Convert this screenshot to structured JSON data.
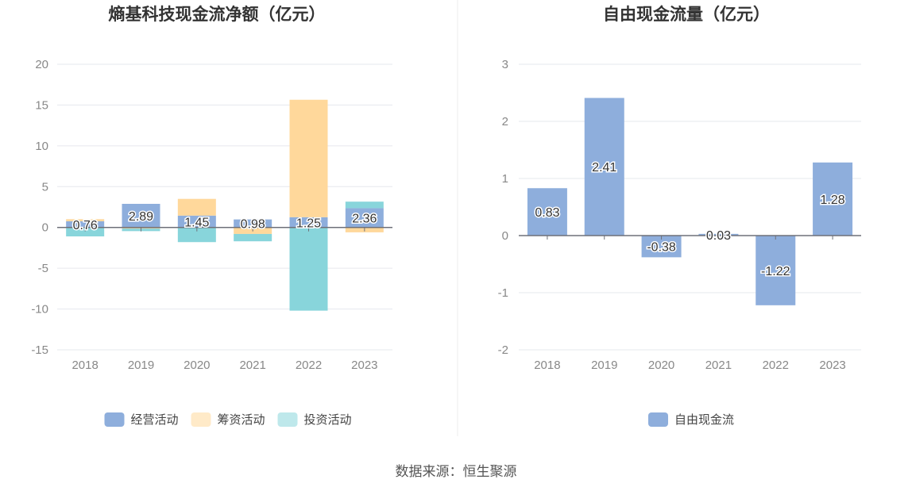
{
  "charts": [
    {
      "title": "熵基科技现金流净额（亿元）",
      "chart_type": "stacked-bar",
      "categories": [
        "2018",
        "2019",
        "2020",
        "2021",
        "2022",
        "2023"
      ],
      "ylim": [
        -15,
        20
      ],
      "yticks": [
        20,
        15,
        10,
        5,
        0,
        -5,
        -10,
        -15
      ],
      "yticks_labels": [
        "20",
        "15",
        "10",
        "5",
        "0",
        "-5",
        "-10",
        "-15"
      ],
      "series": [
        {
          "name": "经营活动",
          "color": "#8eaedc",
          "values": [
            0.76,
            2.89,
            1.45,
            0.98,
            1.25,
            2.36
          ]
        },
        {
          "name": "筹资活动",
          "color": "#ffd89b",
          "values": [
            0.25,
            -0.15,
            2.05,
            -0.8,
            14.4,
            -0.6
          ]
        },
        {
          "name": "投资活动",
          "color": "#88d5db",
          "values": [
            -1.1,
            -0.3,
            -1.8,
            -0.9,
            -10.2,
            0.8
          ]
        }
      ],
      "data_labels": [
        "0.76",
        "2.89",
        "1.45",
        "0.98",
        "1.25",
        "2.36"
      ]
    },
    {
      "title": "自由现金流量（亿元）",
      "chart_type": "bar",
      "categories": [
        "2018",
        "2019",
        "2020",
        "2021",
        "2022",
        "2023"
      ],
      "ylim": [
        -2,
        3
      ],
      "yticks": [
        3,
        2,
        1,
        0,
        -1,
        -2
      ],
      "yticks_labels": [
        "3",
        "2",
        "1",
        "0",
        "-1",
        "-2"
      ],
      "series": [
        {
          "name": "自由现金流",
          "color": "#8eaedc",
          "values": [
            0.83,
            2.41,
            -0.38,
            0.03,
            -1.22,
            1.28
          ]
        }
      ],
      "data_labels": [
        "0.83",
        "2.41",
        "-0.38",
        "0.03",
        "-1.22",
        "1.28"
      ]
    }
  ],
  "source": "数据来源：恒生聚源"
}
